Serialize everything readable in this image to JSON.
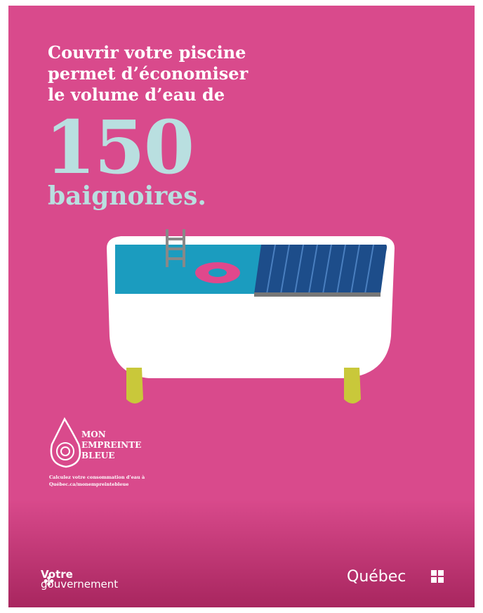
{
  "headline": {
    "lines": [
      "Couvrir votre piscine",
      "permet d’économiser",
      "le volume d’eau de"
    ],
    "number": 150,
    "unit": "baignoires."
  },
  "logo": {
    "lines": [
      "MON",
      "EMPREINTE",
      "BLEUE"
    ],
    "caption": [
      "Calculez votre consommation d’eau à",
      "Québec.ca/monempreintebleue"
    ]
  },
  "footer": {
    "left": [
      "Votre",
      "gouvernement"
    ],
    "right": "Québec"
  }
}
